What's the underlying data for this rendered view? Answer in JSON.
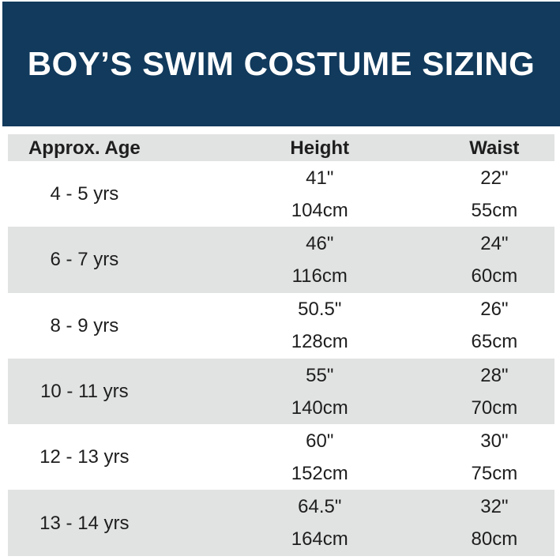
{
  "title": "BOY’S SWIM COSTUME SIZING",
  "colors": {
    "banner_background": "#113a5c",
    "banner_text": "#ffffff",
    "row_shaded": "#e1e2e2",
    "row_plain": "#ffffff",
    "table_text": "#1e1e1e"
  },
  "table": {
    "headers": [
      "Approx. Age",
      "Height",
      "Waist"
    ],
    "rows": [
      {
        "age": "4 - 5 yrs",
        "height_in": "41\"",
        "height_cm": "104cm",
        "waist_in": "22\"",
        "waist_cm": "55cm"
      },
      {
        "age": "6 - 7 yrs",
        "height_in": "46\"",
        "height_cm": "116cm",
        "waist_in": "24\"",
        "waist_cm": "60cm"
      },
      {
        "age": "8 - 9 yrs",
        "height_in": "50.5\"",
        "height_cm": "128cm",
        "waist_in": "26\"",
        "waist_cm": "65cm"
      },
      {
        "age": "10 - 11 yrs",
        "height_in": "55\"",
        "height_cm": "140cm",
        "waist_in": "28\"",
        "waist_cm": "70cm"
      },
      {
        "age": "12 - 13 yrs",
        "height_in": "60\"",
        "height_cm": "152cm",
        "waist_in": "30\"",
        "waist_cm": "75cm"
      },
      {
        "age": "13 - 14 yrs",
        "height_in": "64.5\"",
        "height_cm": "164cm",
        "waist_in": "32\"",
        "waist_cm": "80cm"
      }
    ]
  },
  "chart_data": {
    "type": "table",
    "title": "BOY’S SWIM COSTUME SIZING",
    "columns": [
      "Approx. Age",
      "Height",
      "Waist"
    ],
    "rows": [
      [
        "4 - 5 yrs",
        "41\" / 104cm",
        "22\" / 55cm"
      ],
      [
        "6 - 7 yrs",
        "46\" / 116cm",
        "24\" / 60cm"
      ],
      [
        "8 - 9 yrs",
        "50.5\" / 128cm",
        "26\" / 65cm"
      ],
      [
        "10 - 11 yrs",
        "55\" / 140cm",
        "28\" / 70cm"
      ],
      [
        "12 - 13 yrs",
        "60\" / 152cm",
        "30\" / 75cm"
      ],
      [
        "13 - 14 yrs",
        "64.5\" / 164cm",
        "32\" / 80cm"
      ]
    ]
  }
}
